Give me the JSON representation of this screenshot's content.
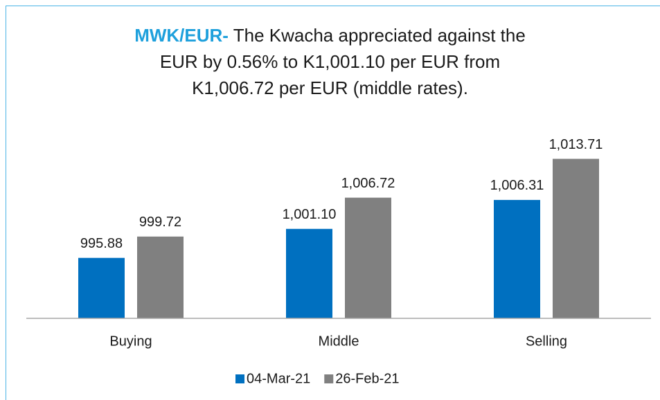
{
  "chart_data": {
    "type": "bar",
    "title": {
      "lead": "MWK/EUR-",
      "lines": [
        "The  Kwacha appreciated against the",
        "EUR by 0.56% to K1,001.10 per EUR from",
        "K1,006.72 per EUR (middle rates)."
      ]
    },
    "categories": [
      "Buying",
      "Middle",
      "Selling"
    ],
    "series": [
      {
        "name": "04-Mar-21",
        "color": "#0070c0",
        "values": [
          995.88,
          1001.1,
          1006.31
        ],
        "value_labels": [
          "995.88",
          "1,001.10",
          "1,006.31"
        ]
      },
      {
        "name": "26-Feb-21",
        "color": "#808080",
        "values": [
          999.72,
          1006.72,
          1013.71
        ],
        "value_labels": [
          "999.72",
          "1,006.72",
          "1,013.71"
        ]
      }
    ],
    "ylim": [
      985,
      1020
    ],
    "legend": "bottom"
  }
}
